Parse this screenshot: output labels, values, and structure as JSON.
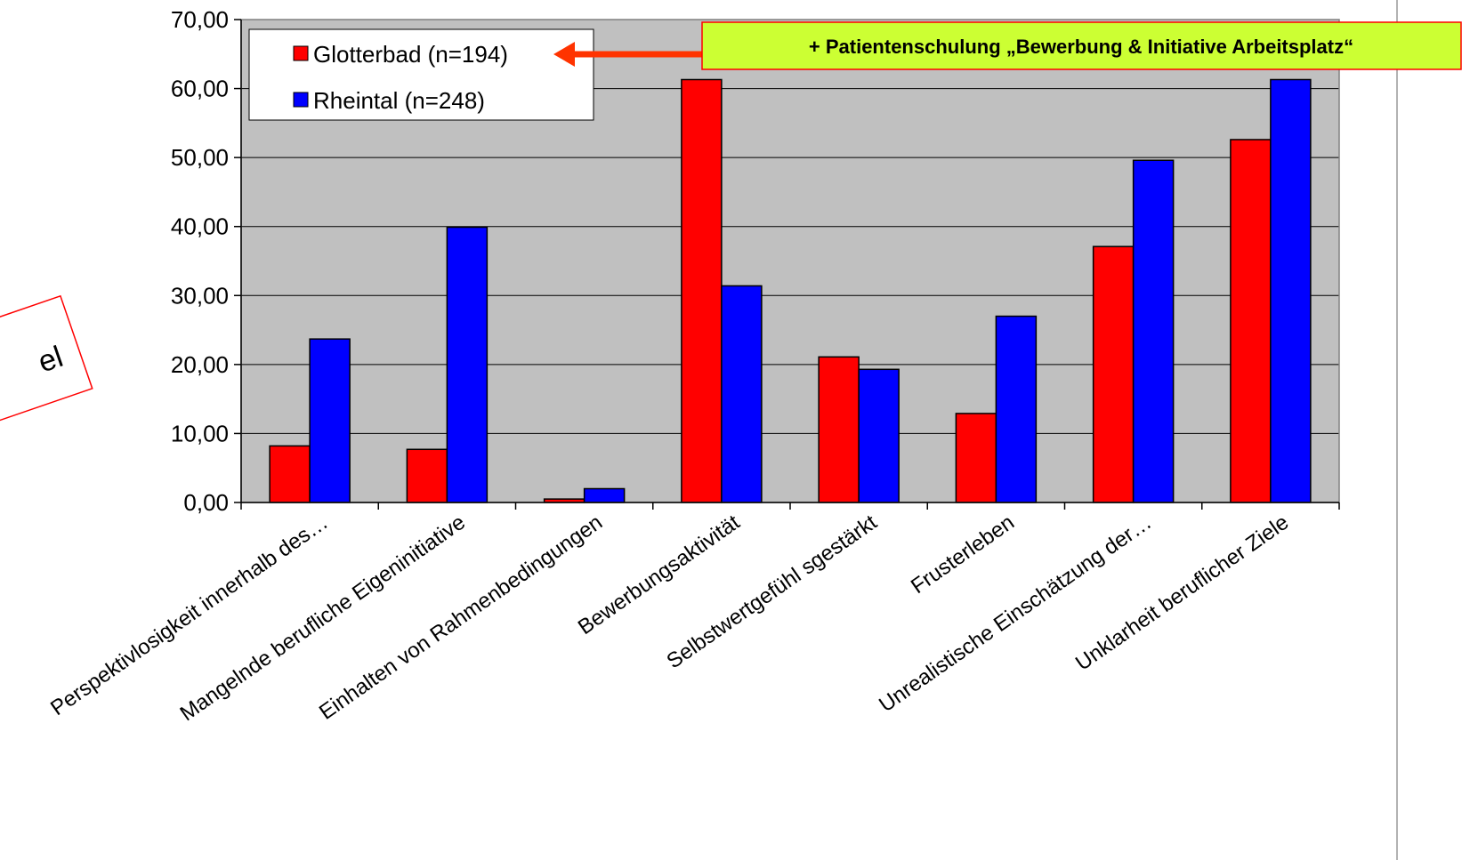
{
  "chart_data": {
    "type": "bar",
    "categories": [
      "Perspektivlosigkeit innerhalb des…",
      "Mangelnde berufliche Eigeninitiative",
      "Einhalten von Rahmenbedingungen",
      "Bewerbungsaktivität",
      "Selbstwertgefühl sgestärkt",
      "Frusterleben",
      "Unrealistische Einschätzung der…",
      "Unklarheit beruflicher Ziele"
    ],
    "series": [
      {
        "name": "Glotterbad (n=194)",
        "color": "#ff0000",
        "values": [
          8.2,
          7.7,
          0.5,
          61.3,
          21.1,
          12.9,
          37.1,
          52.6
        ]
      },
      {
        "name": "Rheintal (n=248)",
        "color": "#0000ff",
        "values": [
          23.7,
          39.9,
          2.0,
          31.4,
          19.3,
          27.0,
          49.6,
          61.3
        ]
      }
    ],
    "yticks": [
      "0,00",
      "10,00",
      "20,00",
      "30,00",
      "40,00",
      "50,00",
      "60,00",
      "70,00"
    ],
    "ylim": [
      0,
      70
    ],
    "grid": true,
    "legend": "top-left",
    "plot_background": "#c0c0c0",
    "annotation": "+ Patientenschulung „Bewerbung & Initiative Arbeitsplatz“",
    "annotation_background": "#ccff33",
    "annotation_border": "#ff0000",
    "annotation_arrow_color": "#ff3300",
    "annotation_arrow_points_to": "Glotterbad (n=194)"
  },
  "side_note_text": "el"
}
